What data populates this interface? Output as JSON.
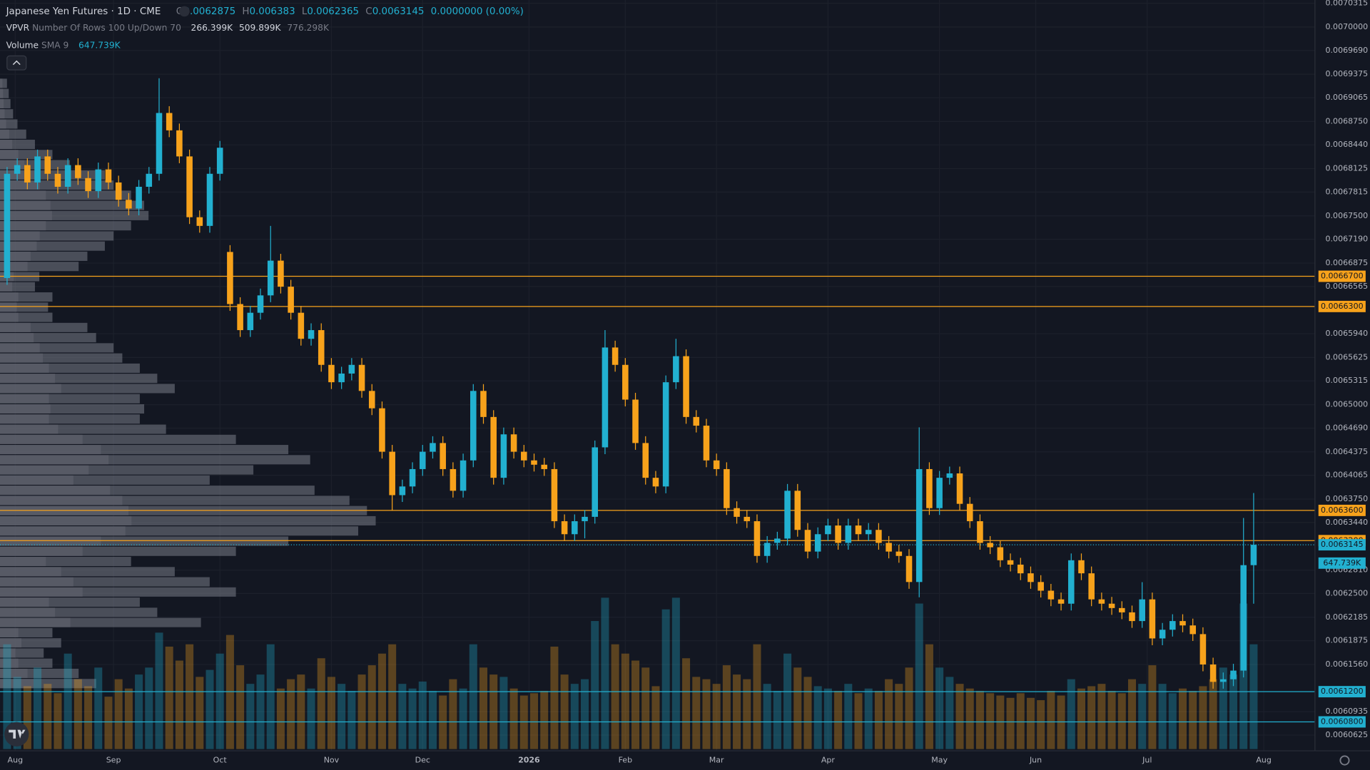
{
  "chart_data": {
    "type": "candlestick",
    "title": "Japanese Yen Futures · 1D · CME",
    "ohlc_keys": [
      "O",
      "H",
      "L",
      "C"
    ],
    "change_label": "0.0000000 (0.00%)",
    "vpvr_title": "VPVR",
    "vpvr_settings": "Number Of Rows 100 Up/Down 70",
    "vpvr_values": [
      "266.399K",
      "509.899K",
      "776.298K"
    ],
    "volume_title": "Volume",
    "volume_settings": "SMA 9",
    "volume_sma_label": "647.739K",
    "up_color": "#22b0d0",
    "down_color": "#f7a21b",
    "grid": true,
    "xlim": [
      -0.7,
      129.05
    ],
    "xticks": [
      {
        "value": 0.8,
        "label": "Aug"
      },
      {
        "value": 10.5,
        "label": "Sep"
      },
      {
        "value": 21,
        "label": "Oct"
      },
      {
        "value": 32,
        "label": "Nov"
      },
      {
        "value": 41,
        "label": "Dec"
      },
      {
        "value": 51.5,
        "label": "2026"
      },
      {
        "value": 61,
        "label": "Feb"
      },
      {
        "value": 70,
        "label": "Mar"
      },
      {
        "value": 81,
        "label": "Apr"
      },
      {
        "value": 92,
        "label": "May"
      },
      {
        "value": 101.5,
        "label": "Jun"
      },
      {
        "value": 112.5,
        "label": "Jul"
      },
      {
        "value": 124,
        "label": "Aug"
      }
    ],
    "ylim": [
      0.0060186,
      0.0070358
    ],
    "yticks": [
      0.0070315,
      {
        "value": 0.007,
        "label": "0.0070000"
      },
      {
        "value": 0.006969,
        "label": "0.0069690"
      },
      0.0069375,
      0.0069065,
      {
        "value": 0.006875,
        "label": "0.0068750"
      },
      {
        "value": 0.006844,
        "label": "0.0068440"
      },
      0.0068125,
      0.0067815,
      {
        "value": 0.00675,
        "label": "0.0067500"
      },
      {
        "value": 0.006719,
        "label": "0.0067190"
      },
      0.0066875,
      0.0066565,
      {
        "value": 0.006594,
        "label": "0.0065940"
      },
      0.0065625,
      0.0065315,
      {
        "value": 0.0065,
        "label": "0.0065000"
      },
      {
        "value": 0.006469,
        "label": "0.0064690"
      },
      0.0064375,
      0.0064065,
      {
        "value": 0.006375,
        "label": "0.0063750"
      },
      {
        "value": 0.006344,
        "label": "0.0063440"
      },
      {
        "value": 0.006281,
        "label": "0.0062810"
      },
      {
        "value": 0.00625,
        "label": "0.0062500"
      },
      0.0062185,
      0.0061875,
      {
        "value": 0.006156,
        "label": "0.0061560"
      },
      0.0060935,
      0.0060625
    ],
    "price_lines": [
      {
        "value": 0.00667,
        "label": "0.0066700",
        "color": "#f7a21b"
      },
      {
        "value": 0.00663,
        "label": "0.0066300",
        "color": "#f7a21b"
      },
      {
        "value": 0.00636,
        "label": "0.0063600",
        "color": "#f7a21b"
      },
      {
        "value": 0.00632,
        "label": "0.0063200",
        "color": "#f7a21b"
      },
      {
        "value": 0.00612,
        "label": "0.0061200",
        "color": "#22b0d0"
      },
      {
        "value": 0.00608,
        "label": "0.0060800",
        "color": "#22b0d0"
      }
    ],
    "open": [
      0.0066677,
      0.0068057,
      0.0068172,
      0.0067942,
      0.0068287,
      0.0068057,
      0.0067885,
      0.0068172,
      0.0068,
      0.0067827,
      0.0068115,
      0.0067942,
      0.0067712,
      0.0067597,
      0.0067885,
      0.0068057,
      0.0068862,
      0.0068632,
      0.0068287,
      0.0067482,
      0.0067367,
      0.0068057,
      0.0067022,
      0.0066332,
      0.0065987,
      0.0066217,
      0.0066447,
      0.0066907,
      0.0066562,
      0.0066217,
      0.0065872,
      0.0065987,
      0.0065527,
      0.0065297,
      0.0065412,
      0.0065527,
      0.0065182,
      0.0064952,
      0.0064377,
      0.0063802,
      0.0063917,
      0.0064147,
      0.0064377,
      0.0064492,
      0.0064147,
      0.006386,
      0.0064262,
      0.0065182,
      0.0064837,
      0.0064032,
      0.0064607,
      0.0064377,
      0.0064262,
      0.0064205,
      0.0064147,
      0.0063457,
      0.0063285,
      0.0063457,
      0.0063515,
      0.0064435,
      0.0065757,
      0.0065527,
      0.0065067,
      0.0064492,
      0.0064032,
      0.0063917,
      0.0065297,
      0.0065642,
      0.0064837,
      0.0064722,
      0.0064262,
      0.0064147,
      0.006363,
      0.0063515,
      0.0063457,
      0.0062997,
      0.006317,
      0.0063227,
      0.006386,
      0.0063342,
      0.0063055,
      0.0063285,
      0.00634,
      0.006317,
      0.00634,
      0.0063285,
      0.0063342,
      0.006317,
      0.0063055,
      0.0062997,
      0.0062652,
      0.0064147,
      0.006363,
      0.0064032,
      0.006409,
      0.0063687,
      0.0063457,
      0.006317,
      0.0063112,
      0.006294,
      0.0062882,
      0.0062767,
      0.0062652,
      0.0062537,
      0.0062422,
      0.0062365,
      0.006294,
      0.0062767,
      0.0062422,
      0.0062365,
      0.0062307,
      0.006225,
      0.0062135,
      0.0062422,
      0.0061905,
      0.006202,
      0.0062135,
      0.0062077,
      0.0061962,
      0.006156,
      0.006133,
      0.0061364,
      0.0061479,
      0.0062875
    ],
    "high": [
      0.0068147,
      0.0068262,
      0.0068262,
      0.0068377,
      0.0068377,
      0.0068147,
      0.0068262,
      0.0068262,
      0.006809,
      0.0068205,
      0.0068205,
      0.0068032,
      0.0067802,
      0.0067975,
      0.0068147,
      0.0069322,
      0.0068952,
      0.0068722,
      0.0068377,
      0.0067572,
      0.0068147,
      0.0068492,
      0.0067112,
      0.0066422,
      0.0066307,
      0.0066537,
      0.0067367,
      0.0066997,
      0.0066652,
      0.0066307,
      0.0066077,
      0.0066077,
      0.0065617,
      0.0065502,
      0.0065617,
      0.0065617,
      0.0065272,
      0.0065042,
      0.0064467,
      0.0064007,
      0.0064237,
      0.0064467,
      0.0064582,
      0.0064582,
      0.0064237,
      0.0064352,
      0.0065272,
      0.0065272,
      0.0064927,
      0.0064697,
      0.0064697,
      0.0064467,
      0.0064352,
      0.0064295,
      0.0064237,
      0.0063547,
      0.0063547,
      0.0063605,
      0.0064525,
      0.0065987,
      0.0065847,
      0.0065617,
      0.0065157,
      0.0064582,
      0.0064122,
      0.0065387,
      0.0065872,
      0.0065732,
      0.0064927,
      0.0064812,
      0.0064352,
      0.0064237,
      0.006372,
      0.0063605,
      0.0063547,
      0.006326,
      0.0063317,
      0.006395,
      0.006395,
      0.0063432,
      0.0063375,
      0.006349,
      0.006349,
      0.006349,
      0.006349,
      0.0063432,
      0.0063432,
      0.006326,
      0.0063145,
      0.0063087,
      0.00647,
      0.0064237,
      0.0064122,
      0.006418,
      0.006418,
      0.0063777,
      0.0063547,
      0.006326,
      0.0063202,
      0.006303,
      0.0062972,
      0.0062857,
      0.0062742,
      0.0062627,
      0.0062512,
      0.006303,
      0.006303,
      0.0062857,
      0.0062512,
      0.0062455,
      0.0062397,
      0.006234,
      0.006265,
      0.0062512,
      0.006211,
      0.0062225,
      0.0062225,
      0.0062167,
      0.0062052,
      0.006165,
      0.0061454,
      0.0061569,
      0.00635,
      0.006383
    ],
    "low": [
      0.0066587,
      0.0067967,
      0.0067852,
      0.0067852,
      0.0067967,
      0.0067795,
      0.0067795,
      0.006791,
      0.0067737,
      0.0067737,
      0.0067852,
      0.0067622,
      0.0067507,
      0.0067507,
      0.0067795,
      0.0067967,
      0.0068542,
      0.0068197,
      0.0067392,
      0.0067277,
      0.0067277,
      0.0067967,
      0.0066242,
      0.0065897,
      0.0065897,
      0.0066127,
      0.0066357,
      0.0066472,
      0.0066127,
      0.0065782,
      0.0065782,
      0.0065437,
      0.0065207,
      0.0065207,
      0.0065322,
      0.0065092,
      0.0064862,
      0.0064287,
      0.00636,
      0.0063712,
      0.0063827,
      0.0064057,
      0.0064287,
      0.0064057,
      0.006377,
      0.006377,
      0.0064172,
      0.0064747,
      0.0063942,
      0.0063942,
      0.0064287,
      0.0064172,
      0.0064115,
      0.0064057,
      0.0063367,
      0.0063195,
      0.0063195,
      0.006323,
      0.0063425,
      0.0064345,
      0.0065437,
      0.0064977,
      0.0064402,
      0.0063942,
      0.0063827,
      0.0063827,
      0.0065207,
      0.0064747,
      0.0064632,
      0.0064172,
      0.0064057,
      0.006354,
      0.0063425,
      0.0063367,
      0.0062907,
      0.0062907,
      0.006308,
      0.0063137,
      0.0063252,
      0.0062965,
      0.0062965,
      0.0063195,
      0.006308,
      0.006308,
      0.0063195,
      0.0063195,
      0.006308,
      0.0062965,
      0.0062907,
      0.0062562,
      0.006245,
      0.006354,
      0.006354,
      0.0063942,
      0.0063597,
      0.0063367,
      0.006308,
      0.0063022,
      0.006285,
      0.0062792,
      0.0062677,
      0.0062562,
      0.0062447,
      0.0062332,
      0.0062275,
      0.0062275,
      0.0062677,
      0.0062332,
      0.0062275,
      0.0062217,
      0.006216,
      0.0062045,
      0.0062045,
      0.0061815,
      0.0061815,
      0.006193,
      0.0061987,
      0.0061872,
      0.006147,
      0.006124,
      0.006124,
      0.0061274,
      0.0061389,
      0.0062365
    ],
    "close": [
      0.0068057,
      0.0068172,
      0.0067942,
      0.0068287,
      0.0068057,
      0.0067885,
      0.0068172,
      0.0068,
      0.0067827,
      0.0068115,
      0.0067942,
      0.0067712,
      0.0067597,
      0.0067885,
      0.0068057,
      0.0068862,
      0.0068632,
      0.0068287,
      0.0067482,
      0.0067367,
      0.0068057,
      0.0068402,
      0.0066332,
      0.0065987,
      0.0066217,
      0.0066447,
      0.0066907,
      0.0066562,
      0.0066217,
      0.0065872,
      0.0065987,
      0.0065527,
      0.0065297,
      0.0065412,
      0.0065527,
      0.0065182,
      0.0064952,
      0.0064377,
      0.0063802,
      0.0063917,
      0.0064147,
      0.0064377,
      0.0064492,
      0.0064147,
      0.006386,
      0.0064262,
      0.0065182,
      0.0064837,
      0.0064032,
      0.0064607,
      0.0064377,
      0.0064262,
      0.0064205,
      0.0064147,
      0.0063457,
      0.0063285,
      0.0063457,
      0.0063515,
      0.0064435,
      0.0065757,
      0.0065527,
      0.0065067,
      0.0064492,
      0.0064032,
      0.0063917,
      0.0065297,
      0.0065642,
      0.0064837,
      0.0064722,
      0.0064262,
      0.0064147,
      0.006363,
      0.0063515,
      0.0063457,
      0.0062997,
      0.006317,
      0.0063227,
      0.006386,
      0.0063342,
      0.0063055,
      0.0063285,
      0.00634,
      0.006317,
      0.00634,
      0.0063285,
      0.0063342,
      0.006317,
      0.0063055,
      0.0062997,
      0.0062652,
      0.0064147,
      0.006363,
      0.0064032,
      0.006409,
      0.0063687,
      0.0063457,
      0.006317,
      0.0063112,
      0.006294,
      0.0062882,
      0.0062767,
      0.0062652,
      0.0062537,
      0.0062422,
      0.0062365,
      0.006294,
      0.0062767,
      0.0062422,
      0.0062365,
      0.0062307,
      0.006225,
      0.0062135,
      0.0062422,
      0.0061905,
      0.006202,
      0.0062135,
      0.0062077,
      0.0061962,
      0.006156,
      0.006133,
      0.0061364,
      0.0061479,
      0.0062875,
      0.0063145
    ],
    "volume": [
      900,
      620,
      540,
      700,
      560,
      480,
      820,
      600,
      540,
      700,
      450,
      600,
      520,
      640,
      700,
      1000,
      880,
      760,
      900,
      620,
      680,
      820,
      980,
      720,
      560,
      640,
      900,
      520,
      600,
      640,
      520,
      780,
      620,
      560,
      500,
      640,
      720,
      820,
      900,
      560,
      520,
      580,
      500,
      460,
      600,
      520,
      900,
      700,
      640,
      620,
      520,
      460,
      480,
      500,
      880,
      640,
      560,
      600,
      1100,
      1300,
      900,
      820,
      760,
      700,
      540,
      1200,
      1300,
      780,
      620,
      600,
      560,
      720,
      640,
      600,
      900,
      560,
      500,
      820,
      700,
      620,
      540,
      520,
      500,
      560,
      480,
      520,
      500,
      600,
      560,
      700,
      1250,
      900,
      700,
      620,
      560,
      520,
      500,
      480,
      460,
      440,
      480,
      440,
      420,
      500,
      460,
      600,
      520,
      540,
      560,
      500,
      480,
      600,
      560,
      720,
      560,
      480,
      520,
      500,
      540,
      600,
      700,
      640,
      1250,
      900
    ],
    "volume_lim": [
      0,
      1500
    ],
    "vpvr_rows": [
      110,
      90,
      60,
      50,
      70,
      60,
      230,
      180,
      160,
      270,
      240,
      200,
      150,
      270,
      330,
      410,
      430,
      420,
      400,
      360,
      240,
      290,
      355,
      330,
      270,
      190,
      160,
      165,
      160,
      200,
      180,
      160,
      140,
      130,
      110,
      100,
      60,
      55,
      60,
      40,
      45,
      90,
      100,
      120,
      130,
      150,
      170,
      165,
      150,
      130,
      120,
      80,
      60,
      40,
      30,
      20,
      15,
      12,
      10,
      8
    ]
  }
}
